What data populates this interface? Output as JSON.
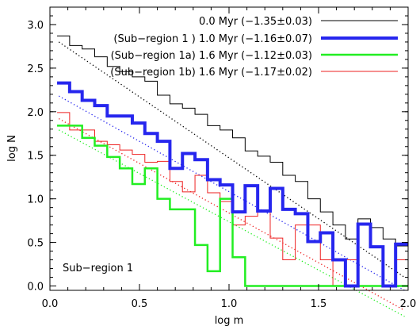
{
  "chart_data": {
    "type": "line",
    "step": true,
    "xlabel": "log m",
    "ylabel": "log N",
    "xlim": [
      0.0,
      2.0
    ],
    "ylim": [
      -0.05,
      3.2
    ],
    "xticks": [
      0.0,
      0.5,
      1.0,
      1.5,
      2.0
    ],
    "xtick_labels": [
      "0.0",
      "0.5",
      "1.0",
      "1.5",
      "2.0"
    ],
    "yticks": [
      0.0,
      0.5,
      1.0,
      1.5,
      2.0,
      2.5,
      3.0
    ],
    "ytick_labels": [
      "0.0",
      "0.5",
      "1.0",
      "1.5",
      "2.0",
      "2.5",
      "3.0"
    ],
    "grid": false,
    "legend_position": "top-right",
    "annotation": "Sub−region 1",
    "bin_edges": [
      0.04,
      0.11,
      0.18,
      0.25,
      0.32,
      0.39,
      0.46,
      0.53,
      0.6,
      0.67,
      0.74,
      0.81,
      0.88,
      0.95,
      1.02,
      1.09,
      1.16,
      1.23,
      1.3,
      1.37,
      1.44,
      1.51,
      1.58,
      1.65,
      1.72,
      1.79,
      1.86,
      1.93,
      2.0
    ],
    "series": [
      {
        "name": "0.0 Myr (−1.35±0.03)",
        "label_prefix": "",
        "color": "#000000",
        "width": 1,
        "values": [
          2.87,
          2.76,
          2.72,
          2.63,
          2.52,
          2.46,
          2.4,
          2.35,
          2.19,
          2.09,
          2.04,
          1.97,
          1.84,
          1.79,
          1.7,
          1.55,
          1.49,
          1.42,
          1.27,
          1.2,
          1.0,
          0.85,
          0.7,
          0.54,
          0.77,
          0.67,
          0.54,
          0.46
        ],
        "fit": {
          "x": [
            0.05,
            1.98
          ],
          "y": [
            2.8,
            0.1
          ]
        }
      },
      {
        "name": "1.0 Myr (−1.16±0.07)",
        "label_prefix": "(Sub−region 1 )",
        "color": "#2626ee",
        "width": 4,
        "values": [
          2.33,
          2.23,
          2.13,
          2.07,
          1.95,
          1.95,
          1.87,
          1.75,
          1.66,
          1.35,
          1.52,
          1.45,
          1.22,
          1.16,
          0.85,
          1.15,
          0.86,
          1.12,
          0.88,
          0.83,
          0.51,
          0.61,
          0.3,
          0.0,
          0.71,
          0.45,
          0.0,
          0.48
        ],
        "fit": {
          "x": [
            0.05,
            1.98
          ],
          "y": [
            2.18,
            -0.05
          ]
        }
      },
      {
        "name": "1.6 Myr (−1.12±0.03)",
        "label_prefix": "(Sub−region 1a)",
        "color": "#22ee22",
        "width": 2.5,
        "values": [
          1.84,
          1.84,
          1.7,
          1.61,
          1.48,
          1.35,
          1.17,
          1.35,
          1.0,
          0.88,
          0.88,
          0.47,
          0.17,
          1.0,
          0.33,
          0.0,
          0.0,
          0.0,
          0.0,
          0.0,
          0.0,
          0.0,
          0.0,
          0.0,
          0.0,
          0.0,
          0.0,
          0.0
        ],
        "fit": {
          "x": [
            0.05,
            1.98
          ],
          "y": [
            1.79,
            -0.35
          ]
        },
        "steps_until": 1.16
      },
      {
        "name": "1.6 Myr (−1.17±0.02)",
        "label_prefix": "(Sub−region 1b)",
        "color": "#ee2222",
        "width": 1,
        "values": [
          1.99,
          1.79,
          1.79,
          1.66,
          1.62,
          1.56,
          1.51,
          1.42,
          1.43,
          1.2,
          1.08,
          1.27,
          1.07,
          0.97,
          0.7,
          0.8,
          0.87,
          0.55,
          0.3,
          0.7,
          0.7,
          0.3,
          0.0,
          0.3,
          0.0,
          0.0,
          0.0,
          0.3
        ],
        "fit": {
          "x": [
            0.05,
            1.98
          ],
          "y": [
            1.92,
            -0.28
          ]
        }
      }
    ]
  }
}
